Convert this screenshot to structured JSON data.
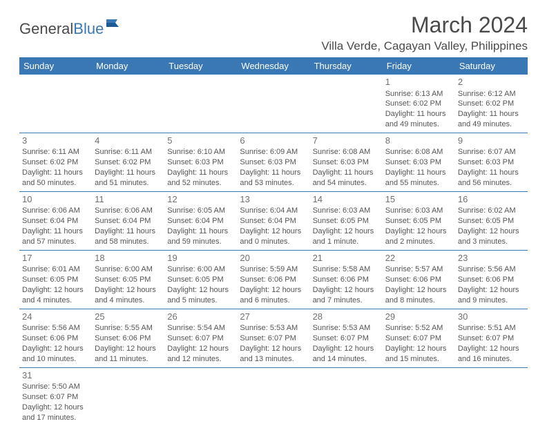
{
  "brand": {
    "part1": "General",
    "part2": "Blue"
  },
  "title": "March 2024",
  "location": "Villa Verde, Cagayan Valley, Philippines",
  "colors": {
    "header_bg": "#3a78b5",
    "header_fg": "#ffffff",
    "border": "#3a78b5",
    "text": "#555555",
    "daynum": "#707070",
    "title": "#4a4a4a"
  },
  "daysOfWeek": [
    "Sunday",
    "Monday",
    "Tuesday",
    "Wednesday",
    "Thursday",
    "Friday",
    "Saturday"
  ],
  "weeks": [
    [
      null,
      null,
      null,
      null,
      null,
      {
        "n": "1",
        "sr": "6:13 AM",
        "ss": "6:02 PM",
        "dl": "11 hours and 49 minutes."
      },
      {
        "n": "2",
        "sr": "6:12 AM",
        "ss": "6:02 PM",
        "dl": "11 hours and 49 minutes."
      }
    ],
    [
      {
        "n": "3",
        "sr": "6:11 AM",
        "ss": "6:02 PM",
        "dl": "11 hours and 50 minutes."
      },
      {
        "n": "4",
        "sr": "6:11 AM",
        "ss": "6:02 PM",
        "dl": "11 hours and 51 minutes."
      },
      {
        "n": "5",
        "sr": "6:10 AM",
        "ss": "6:03 PM",
        "dl": "11 hours and 52 minutes."
      },
      {
        "n": "6",
        "sr": "6:09 AM",
        "ss": "6:03 PM",
        "dl": "11 hours and 53 minutes."
      },
      {
        "n": "7",
        "sr": "6:08 AM",
        "ss": "6:03 PM",
        "dl": "11 hours and 54 minutes."
      },
      {
        "n": "8",
        "sr": "6:08 AM",
        "ss": "6:03 PM",
        "dl": "11 hours and 55 minutes."
      },
      {
        "n": "9",
        "sr": "6:07 AM",
        "ss": "6:03 PM",
        "dl": "11 hours and 56 minutes."
      }
    ],
    [
      {
        "n": "10",
        "sr": "6:06 AM",
        "ss": "6:04 PM",
        "dl": "11 hours and 57 minutes."
      },
      {
        "n": "11",
        "sr": "6:06 AM",
        "ss": "6:04 PM",
        "dl": "11 hours and 58 minutes."
      },
      {
        "n": "12",
        "sr": "6:05 AM",
        "ss": "6:04 PM",
        "dl": "11 hours and 59 minutes."
      },
      {
        "n": "13",
        "sr": "6:04 AM",
        "ss": "6:04 PM",
        "dl": "12 hours and 0 minutes."
      },
      {
        "n": "14",
        "sr": "6:03 AM",
        "ss": "6:05 PM",
        "dl": "12 hours and 1 minute."
      },
      {
        "n": "15",
        "sr": "6:03 AM",
        "ss": "6:05 PM",
        "dl": "12 hours and 2 minutes."
      },
      {
        "n": "16",
        "sr": "6:02 AM",
        "ss": "6:05 PM",
        "dl": "12 hours and 3 minutes."
      }
    ],
    [
      {
        "n": "17",
        "sr": "6:01 AM",
        "ss": "6:05 PM",
        "dl": "12 hours and 4 minutes."
      },
      {
        "n": "18",
        "sr": "6:00 AM",
        "ss": "6:05 PM",
        "dl": "12 hours and 4 minutes."
      },
      {
        "n": "19",
        "sr": "6:00 AM",
        "ss": "6:05 PM",
        "dl": "12 hours and 5 minutes."
      },
      {
        "n": "20",
        "sr": "5:59 AM",
        "ss": "6:06 PM",
        "dl": "12 hours and 6 minutes."
      },
      {
        "n": "21",
        "sr": "5:58 AM",
        "ss": "6:06 PM",
        "dl": "12 hours and 7 minutes."
      },
      {
        "n": "22",
        "sr": "5:57 AM",
        "ss": "6:06 PM",
        "dl": "12 hours and 8 minutes."
      },
      {
        "n": "23",
        "sr": "5:56 AM",
        "ss": "6:06 PM",
        "dl": "12 hours and 9 minutes."
      }
    ],
    [
      {
        "n": "24",
        "sr": "5:56 AM",
        "ss": "6:06 PM",
        "dl": "12 hours and 10 minutes."
      },
      {
        "n": "25",
        "sr": "5:55 AM",
        "ss": "6:06 PM",
        "dl": "12 hours and 11 minutes."
      },
      {
        "n": "26",
        "sr": "5:54 AM",
        "ss": "6:07 PM",
        "dl": "12 hours and 12 minutes."
      },
      {
        "n": "27",
        "sr": "5:53 AM",
        "ss": "6:07 PM",
        "dl": "12 hours and 13 minutes."
      },
      {
        "n": "28",
        "sr": "5:53 AM",
        "ss": "6:07 PM",
        "dl": "12 hours and 14 minutes."
      },
      {
        "n": "29",
        "sr": "5:52 AM",
        "ss": "6:07 PM",
        "dl": "12 hours and 15 minutes."
      },
      {
        "n": "30",
        "sr": "5:51 AM",
        "ss": "6:07 PM",
        "dl": "12 hours and 16 minutes."
      }
    ],
    [
      {
        "n": "31",
        "sr": "5:50 AM",
        "ss": "6:07 PM",
        "dl": "12 hours and 17 minutes."
      },
      null,
      null,
      null,
      null,
      null,
      null
    ]
  ],
  "labels": {
    "sunrise": "Sunrise:",
    "sunset": "Sunset:",
    "daylight": "Daylight:"
  }
}
